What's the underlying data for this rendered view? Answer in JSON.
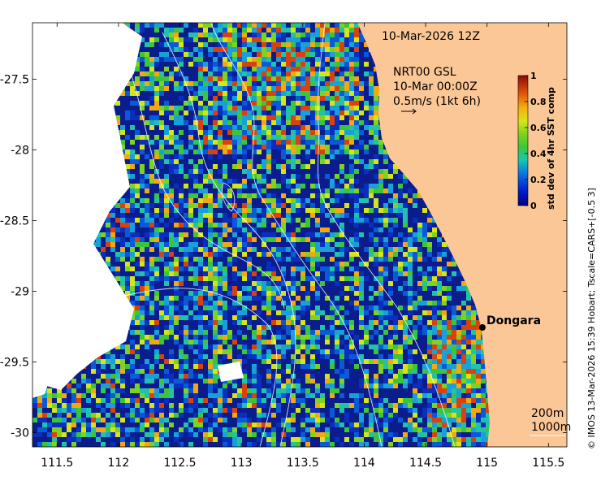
{
  "map": {
    "title_time": "10-Mar-2026 12Z",
    "current_label_1": "NRT00 GSL",
    "current_label_2": "10-Mar 00:00Z",
    "current_label_3": "0.5m/s (1kt 6h)",
    "place_name": "Dongara",
    "legend_contour_1": "200m",
    "legend_contour_2": "1000m",
    "credit": "© IMOS 13-Mar-2026 15:39 Hobart; Tscale=CARS+[-0.5 3]",
    "colors": {
      "land": "#fcc796",
      "ocean_low": "#0b1d8c",
      "contour": "#ffffff"
    }
  },
  "axes": {
    "x_ticks": [
      "111.5",
      "112",
      "112.5",
      "113",
      "113.5",
      "114",
      "114.5",
      "115",
      "115.5"
    ],
    "x_values": [
      111.5,
      112,
      112.5,
      113,
      113.5,
      114,
      114.5,
      115,
      115.5
    ],
    "x_range": [
      111.3,
      115.65
    ],
    "y_ticks": [
      "-27.5",
      "-28",
      "-28.5",
      "-29",
      "-29.5",
      "-30"
    ],
    "y_values": [
      -27.5,
      -28,
      -28.5,
      -29,
      -29.5,
      -30
    ],
    "y_range": [
      -30.1,
      -27.1
    ]
  },
  "colorbar": {
    "label": "std dev of 4hr SST comp",
    "ticks": [
      "1",
      "0.8",
      "0.6",
      "0.4",
      "0.2",
      "0"
    ],
    "tick_values": [
      1,
      0.8,
      0.6,
      0.4,
      0.2,
      0
    ],
    "range": [
      0,
      1
    ]
  }
}
